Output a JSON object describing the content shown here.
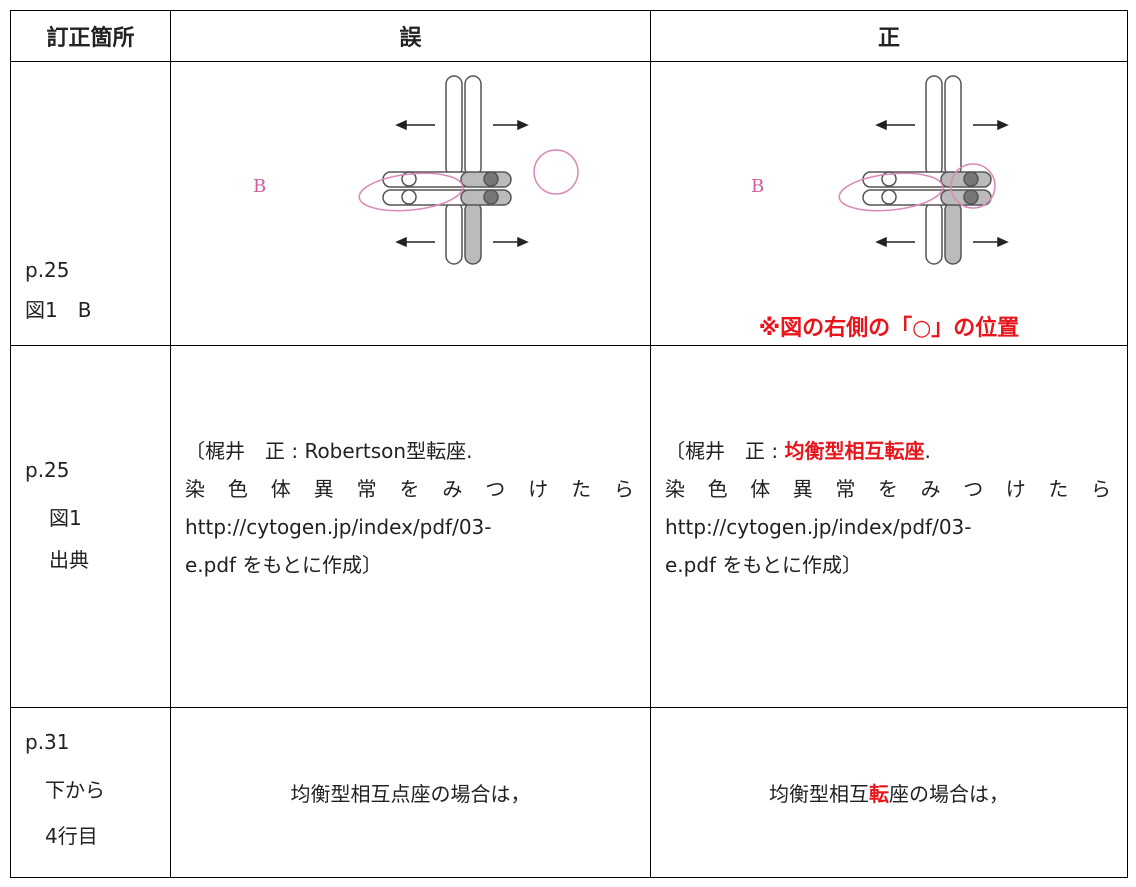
{
  "table": {
    "header": [
      "訂正箇所",
      "誤",
      "正"
    ],
    "rows": [
      {
        "location": [
          "p.25",
          "図1　B"
        ],
        "wrong": {
          "figure_label": "B"
        },
        "right": {
          "figure_label": "B",
          "note": "※図の右側の「○」の位置"
        }
      },
      {
        "location": [
          "p.25",
          "図1",
          "出典"
        ],
        "wrong": {
          "lines": [
            "〔梶井　正 : Robertson型転座.",
            "染色体異常をみつけたら",
            "http://cytogen.jp/index/pdf/03-",
            "e.pdf をもとに作成〕"
          ]
        },
        "right": {
          "first_line": {
            "before": "〔梶井　正 : ",
            "highlight": "均衡型相互転座",
            "after": "."
          },
          "lines": [
            "染色体異常をみつけたら",
            "http://cytogen.jp/index/pdf/03-",
            "e.pdf をもとに作成〕"
          ]
        }
      },
      {
        "location": [
          "p.31",
          "下から",
          "4行目"
        ],
        "wrong": {
          "text": "均衡型相互点座の場合は，"
        },
        "right": {
          "before": "均衡型相互",
          "highlight": "転",
          "after": "座の場合は，"
        }
      }
    ]
  }
}
